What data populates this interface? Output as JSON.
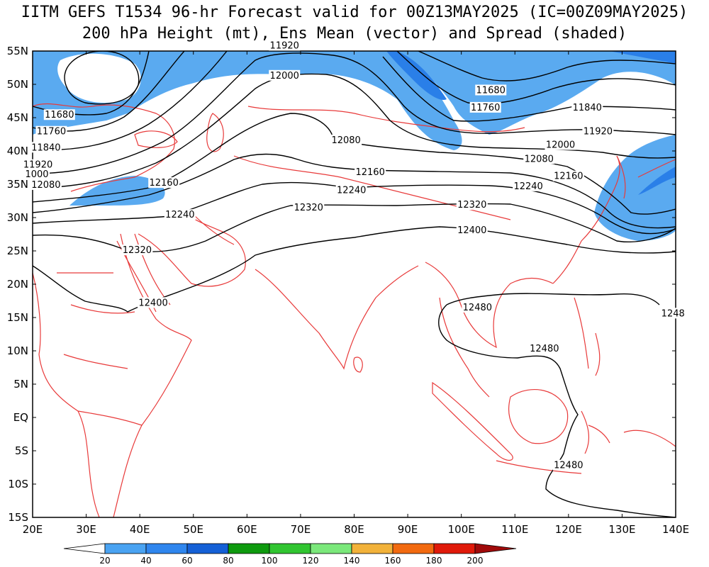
{
  "title": {
    "line1": "IITM GEFS T1534 96-hr Forecast valid for 00Z13MAY2025 (IC=00Z09MAY2025)",
    "line2": "200 hPa Height (mt), Ens Mean (vector) and Spread (shaded)"
  },
  "lat_labels": [
    "55N",
    "50N",
    "45N",
    "40N",
    "35N",
    "30N",
    "25N",
    "20N",
    "15N",
    "10N",
    "5N",
    "EQ",
    "5S",
    "10S",
    "15S"
  ],
  "lon_labels": [
    "20E",
    "30E",
    "40E",
    "50E",
    "60E",
    "70E",
    "80E",
    "90E",
    "100E",
    "110E",
    "120E",
    "130E",
    "140E"
  ],
  "contour_labels": [
    {
      "text": "11920",
      "lon": 67,
      "lat": 55.8
    },
    {
      "text": "12000",
      "lon": 67,
      "lat": 51.3
    },
    {
      "text": "11680",
      "lon": 105.5,
      "lat": 49.1
    },
    {
      "text": "11760",
      "lon": 104.5,
      "lat": 46.5
    },
    {
      "text": "11840",
      "lon": 123.5,
      "lat": 46.5
    },
    {
      "text": "11920",
      "lon": 125.5,
      "lat": 42.9
    },
    {
      "text": "12000",
      "lon": 118.5,
      "lat": 40.9
    },
    {
      "text": "12080",
      "lon": 114.5,
      "lat": 38.8
    },
    {
      "text": "12160",
      "lon": 120,
      "lat": 36.2
    },
    {
      "text": "12240",
      "lon": 112.5,
      "lat": 34.7
    },
    {
      "text": "12320",
      "lon": 102,
      "lat": 31.9
    },
    {
      "text": "12400",
      "lon": 102,
      "lat": 28.1
    },
    {
      "text": "12480",
      "lon": 103,
      "lat": 16.5
    },
    {
      "text": "12480",
      "lon": 115.5,
      "lat": 10.3
    },
    {
      "text": "12480",
      "lon": 120,
      "lat": -7.2
    },
    {
      "text": "1248",
      "lon": 139.5,
      "lat": 15.6
    },
    {
      "text": "12080",
      "lon": 78.5,
      "lat": 41.6
    },
    {
      "text": "12160",
      "lon": 83,
      "lat": 36.8
    },
    {
      "text": "12240",
      "lon": 79.5,
      "lat": 34.1
    },
    {
      "text": "12320",
      "lon": 71.5,
      "lat": 31.5
    },
    {
      "text": "11680",
      "lon": 25,
      "lat": 45.4
    },
    {
      "text": "11760",
      "lon": 23.5,
      "lat": 42.9
    },
    {
      "text": "11840",
      "lon": 22.5,
      "lat": 40.5
    },
    {
      "text": "11920",
      "lon": 21,
      "lat": 37.9
    },
    {
      "text": "1000",
      "lon": 20.8,
      "lat": 36.5
    },
    {
      "text": "12080",
      "lon": 22.5,
      "lat": 34.9
    },
    {
      "text": "12160",
      "lon": 44.5,
      "lat": 35.2
    },
    {
      "text": "12240",
      "lon": 47.5,
      "lat": 30.4
    },
    {
      "text": "12320",
      "lon": 39.5,
      "lat": 25.1
    },
    {
      "text": "12400",
      "lon": 42.5,
      "lat": 17.2
    }
  ],
  "colorbar": {
    "labels": [
      "20",
      "40",
      "60",
      "80",
      "100",
      "120",
      "140",
      "160",
      "180",
      "200"
    ],
    "colors": [
      "#ffffff",
      "#4aa3f2",
      "#2f86ee",
      "#1560d6",
      "#0e9a0e",
      "#31c531",
      "#7be87b",
      "#f2b23a",
      "#f26a10",
      "#e01a0a",
      "#a00a0a"
    ]
  },
  "colors": {
    "shade_low": "#5aaaf0",
    "shade_high": "#2a7fe8",
    "coast": "#e83a3a",
    "contour": "#000000"
  }
}
